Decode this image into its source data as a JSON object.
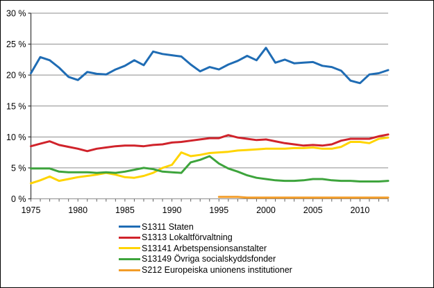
{
  "figure": {
    "background_color": "#ffffff",
    "border_color": "#000000",
    "gridline_color": "#8c8c8c",
    "y_axis_color": "#404040",
    "x_axis_color": "#8c8c8c",
    "tick_color": "#606060"
  },
  "y_axis": {
    "tick_labels": [
      "0 %",
      "5 %",
      "10 %",
      "15 %",
      "20 %",
      "25 %",
      "30 %"
    ],
    "unit_suffix": " %"
  },
  "x_axis": {
    "tick_labels": [
      "1975",
      "1980",
      "1985",
      "1990",
      "1995",
      "2000",
      "2005",
      "2010"
    ]
  },
  "chart_data": {
    "type": "line",
    "title": "",
    "xlabel": "",
    "ylabel": "",
    "xlim": [
      1975,
      2013
    ],
    "ylim": [
      0,
      30
    ],
    "y_tick_step": 5,
    "x_minor_tick_step": 1,
    "x_label_step": 5,
    "x_label_start": 1975,
    "x_label_end": 2010,
    "grid": "horizontal",
    "legend_position": "bottom-left",
    "x": [
      1975,
      1976,
      1977,
      1978,
      1979,
      1980,
      1981,
      1982,
      1983,
      1984,
      1985,
      1986,
      1987,
      1988,
      1989,
      1990,
      1991,
      1992,
      1993,
      1994,
      1995,
      1996,
      1997,
      1998,
      1999,
      2000,
      2001,
      2002,
      2003,
      2004,
      2005,
      2006,
      2007,
      2008,
      2009,
      2010,
      2011,
      2012,
      2013
    ],
    "series": [
      {
        "id": "s1311-staten",
        "name": "S1311 Staten",
        "color": "#1F6CB4",
        "values": [
          20.3,
          22.9,
          22.4,
          21.2,
          19.7,
          19.2,
          20.5,
          20.2,
          20.1,
          20.9,
          21.5,
          22.4,
          21.6,
          23.8,
          23.4,
          23.2,
          23.0,
          21.7,
          20.6,
          21.3,
          20.9,
          21.7,
          22.3,
          23.1,
          22.4,
          24.4,
          22.0,
          22.5,
          21.9,
          22.0,
          22.1,
          21.5,
          21.3,
          20.7,
          19.1,
          18.7,
          20.1,
          20.3,
          20.8
        ]
      },
      {
        "id": "s1313-lokaltforvaltning",
        "name": "S1313 Lokaltförvaltning",
        "color": "#D0232B",
        "values": [
          8.5,
          8.9,
          9.3,
          8.7,
          8.4,
          8.1,
          7.7,
          8.1,
          8.3,
          8.5,
          8.6,
          8.6,
          8.5,
          8.7,
          8.8,
          9.1,
          9.2,
          9.4,
          9.6,
          9.8,
          9.8,
          10.3,
          9.9,
          9.7,
          9.5,
          9.6,
          9.3,
          9.0,
          8.8,
          8.6,
          8.7,
          8.6,
          8.8,
          9.4,
          9.7,
          9.7,
          9.7,
          10.1,
          10.4
        ]
      },
      {
        "id": "s13141-arbetspensionsanstalter",
        "name": "S13141 Arbetspensionsanstalter",
        "color": "#FFD400",
        "values": [
          2.5,
          3.0,
          3.6,
          2.9,
          3.2,
          3.5,
          3.7,
          3.9,
          4.2,
          3.9,
          3.5,
          3.4,
          3.7,
          4.2,
          5.0,
          5.5,
          7.5,
          6.9,
          7.1,
          7.4,
          7.5,
          7.6,
          7.8,
          7.9,
          8.0,
          8.1,
          8.1,
          8.1,
          8.2,
          8.2,
          8.3,
          8.1,
          8.1,
          8.4,
          9.2,
          9.2,
          9.0,
          9.7,
          9.9
        ]
      },
      {
        "id": "s13149-ovriga-socialskyddsfonder",
        "name": "S13149 Övriga socialskyddsfonder",
        "color": "#3DA43C",
        "values": [
          4.9,
          4.9,
          4.9,
          4.4,
          4.3,
          4.3,
          4.3,
          4.2,
          4.3,
          4.2,
          4.4,
          4.7,
          5.0,
          4.8,
          4.4,
          4.3,
          4.2,
          5.9,
          6.3,
          6.9,
          5.7,
          4.9,
          4.4,
          3.8,
          3.4,
          3.2,
          3.0,
          2.9,
          2.9,
          3.0,
          3.2,
          3.2,
          3.0,
          2.9,
          2.9,
          2.8,
          2.8,
          2.8,
          2.9
        ]
      },
      {
        "id": "s212-europeiska-unionens-institutioner",
        "name": "S212 Europeiska unionens institutioner",
        "color": "#F29C28",
        "values": [
          null,
          null,
          null,
          null,
          null,
          null,
          null,
          null,
          null,
          null,
          null,
          null,
          null,
          null,
          null,
          null,
          null,
          null,
          null,
          null,
          0.3,
          0.3,
          0.3,
          0.2,
          0.2,
          0.2,
          0.2,
          0.2,
          0.2,
          0.2,
          0.2,
          0.2,
          0.2,
          0.2,
          0.2,
          0.2,
          0.2,
          0.2,
          0.2
        ]
      }
    ]
  }
}
